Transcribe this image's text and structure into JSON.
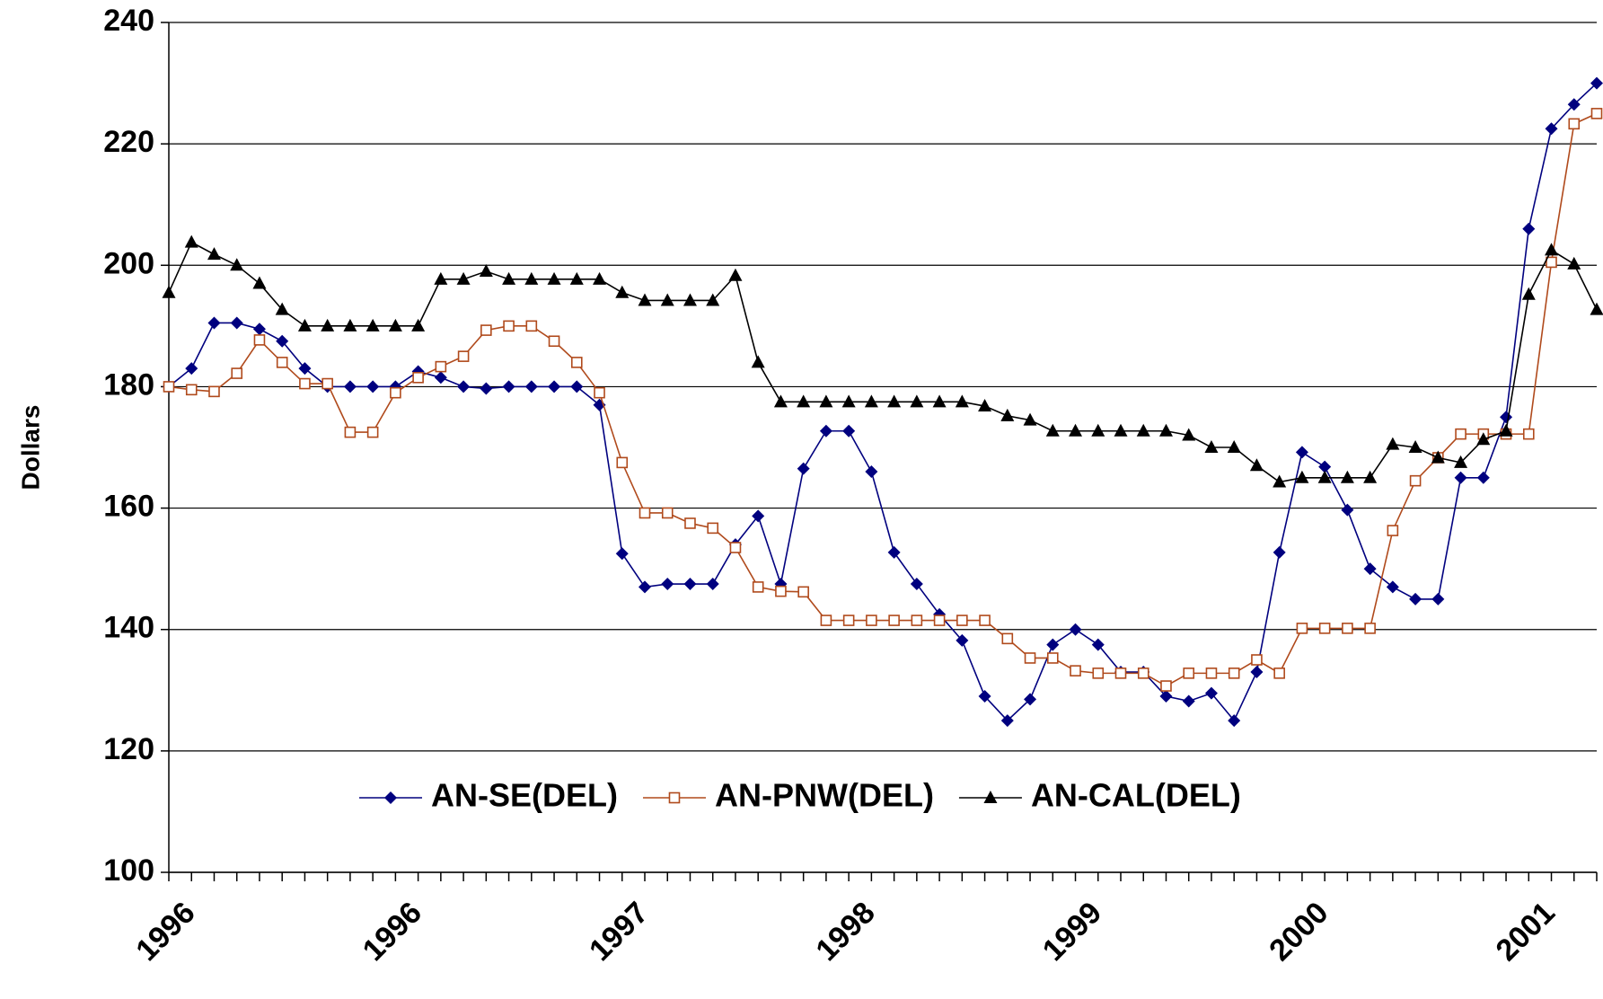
{
  "chart_data": {
    "type": "line",
    "y_label": "Dollars",
    "categories": [
      "1996",
      null,
      null,
      null,
      null,
      null,
      null,
      null,
      null,
      null,
      "1996",
      null,
      null,
      null,
      null,
      null,
      null,
      null,
      null,
      null,
      "1997",
      null,
      null,
      null,
      null,
      null,
      null,
      null,
      null,
      null,
      "1998",
      null,
      null,
      null,
      null,
      null,
      null,
      null,
      null,
      null,
      "1999",
      null,
      null,
      null,
      null,
      null,
      null,
      null,
      null,
      null,
      "2000",
      null,
      null,
      null,
      null,
      null,
      null,
      null,
      null,
      null,
      "2001",
      null,
      null,
      null
    ],
    "series": [
      {
        "name": "AN-SE(DEL)",
        "color": "#00007f",
        "marker": "diamond",
        "values": [
          180,
          183,
          190.5,
          190.5,
          189.5,
          187.5,
          183,
          180,
          180,
          180,
          180,
          182.5,
          181.5,
          180,
          179.7,
          180,
          180,
          180,
          180,
          177,
          152.5,
          147,
          147.5,
          147.5,
          147.5,
          154,
          158.7,
          147.5,
          166.5,
          172.7,
          172.7,
          166,
          152.7,
          147.5,
          142.5,
          138.2,
          129,
          125,
          128.5,
          137.5,
          140,
          137.5,
          133,
          133,
          129,
          128.2,
          129.5,
          125,
          133,
          152.7,
          169.2,
          166.8,
          159.7,
          150,
          147,
          145,
          145,
          165,
          165,
          175,
          206,
          222.5,
          226.5,
          230
        ]
      },
      {
        "name": "AN-PNW(DEL)",
        "color": "#b04a1c",
        "marker": "square",
        "values": [
          180,
          179.5,
          179.2,
          182.2,
          187.7,
          184,
          180.5,
          180.5,
          172.5,
          172.5,
          179,
          181.5,
          183.3,
          185,
          189.3,
          190,
          190,
          187.5,
          184,
          179,
          167.5,
          159.2,
          159.2,
          157.5,
          156.7,
          153.5,
          147,
          146.3,
          146.2,
          141.5,
          141.5,
          141.5,
          141.5,
          141.5,
          141.5,
          141.5,
          141.5,
          138.5,
          135.3,
          135.3,
          133.2,
          132.8,
          132.8,
          132.8,
          130.7,
          132.8,
          132.8,
          132.8,
          135,
          132.8,
          140.2,
          140.2,
          140.2,
          140.2,
          156.3,
          164.5,
          168.3,
          172.2,
          172.2,
          172.2,
          172.2,
          200.5,
          223.3,
          225
        ]
      },
      {
        "name": "AN-CAL(DEL)",
        "color": "#000000",
        "marker": "triangle",
        "values": [
          195.5,
          203.8,
          201.8,
          200,
          197,
          192.7,
          190,
          190,
          190,
          190,
          190,
          190,
          197.7,
          197.7,
          199,
          197.7,
          197.7,
          197.7,
          197.7,
          197.7,
          195.5,
          194.2,
          194.2,
          194.2,
          194.2,
          198.3,
          184,
          177.5,
          177.5,
          177.5,
          177.5,
          177.5,
          177.5,
          177.5,
          177.5,
          177.5,
          176.8,
          175.2,
          174.5,
          172.7,
          172.7,
          172.7,
          172.7,
          172.7,
          172.7,
          172,
          170,
          170,
          167,
          164.3,
          165,
          165,
          165,
          165,
          170.5,
          170,
          168.3,
          167.5,
          171.3,
          172.7,
          195.2,
          202.5,
          200.2,
          192.7
        ]
      }
    ],
    "ylim": [
      100,
      240
    ],
    "yticks": [
      100,
      120,
      140,
      160,
      180,
      200,
      220,
      240
    ],
    "grid": true,
    "legend": "bottom"
  }
}
